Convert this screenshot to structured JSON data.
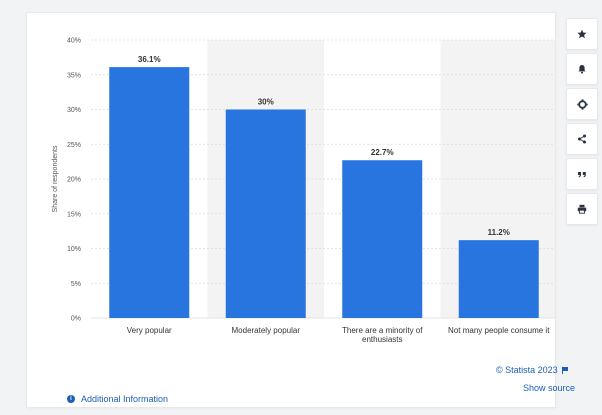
{
  "chart_data": {
    "type": "bar",
    "categories": [
      [
        "Very popular"
      ],
      [
        "Moderately popular"
      ],
      [
        "There are a minority of",
        "enthusiasts"
      ],
      [
        "Not many people consume it"
      ]
    ],
    "values": [
      36.1,
      30,
      22.7,
      11.2
    ],
    "value_labels": [
      "36.1%",
      "30%",
      "22.7%",
      "11.2%"
    ],
    "ylabel": "Share of respondents",
    "ylim": [
      0,
      40
    ],
    "yticks": [
      0,
      5,
      10,
      15,
      20,
      25,
      30,
      35,
      40
    ],
    "ytick_labels": [
      "0%",
      "5%",
      "10%",
      "15%",
      "20%",
      "25%",
      "30%",
      "35%",
      "40%"
    ],
    "grid": true,
    "bar_color": "#2975e0",
    "alt_band_color": "#f3f3f3"
  },
  "footer": {
    "additional_info": "Additional Information",
    "copyright": "© Statista 2023",
    "show_source": "Show source"
  },
  "sidebar": {
    "buttons": [
      {
        "name": "star-icon"
      },
      {
        "name": "bell-icon"
      },
      {
        "name": "gear-icon"
      },
      {
        "name": "share-icon"
      },
      {
        "name": "quote-icon"
      },
      {
        "name": "print-icon"
      }
    ]
  },
  "colors": {
    "link": "#1a5fb4",
    "axis_text": "#555555",
    "grid": "#dcdcdc"
  }
}
